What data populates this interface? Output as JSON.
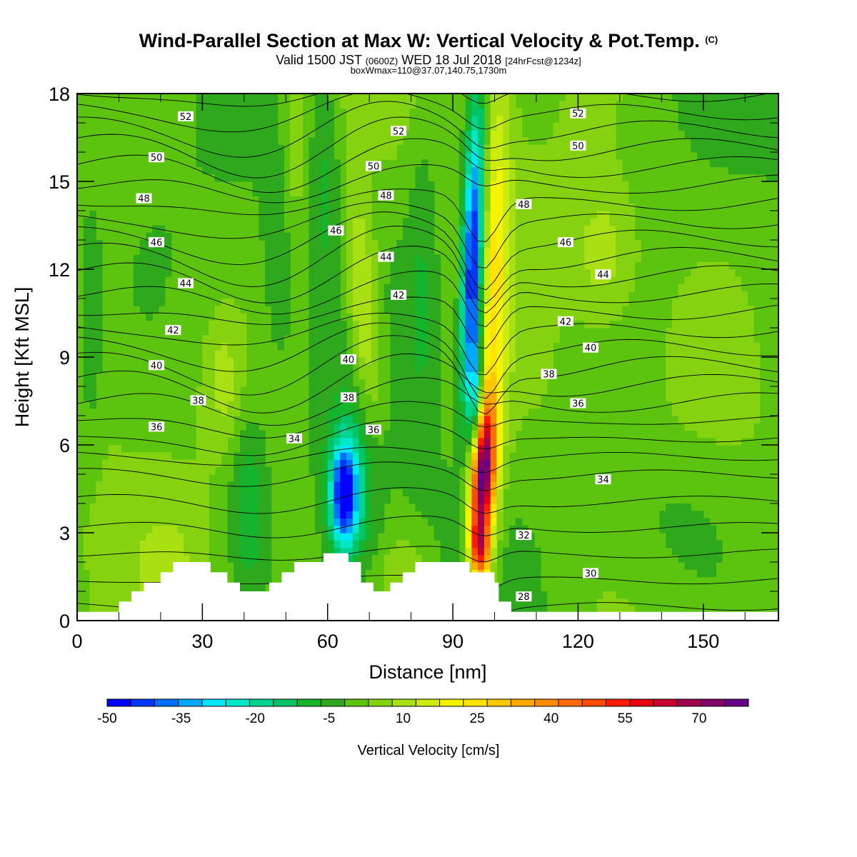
{
  "header": {
    "title": "Wind-Parallel Section at Max W: Vertical Velocity & Pot.Temp.",
    "copyright": "(C)",
    "valid_prefix": "Valid 1500 JST",
    "valid_utc": "(0600Z)",
    "valid_date": "WED 18 Jul 2018",
    "forecast": "[24hrFcst@1234z]",
    "box": "boxWmax=110@37.07,140.75,1730m"
  },
  "chart_data": {
    "type": "heatmap",
    "title": "Wind-Parallel Section at Max W: Vertical Velocity & Pot.Temp.",
    "xlabel": "Distance [nm]",
    "ylabel": "Height [Kft MSL]",
    "xlim": [
      0,
      168
    ],
    "ylim": [
      0,
      18
    ],
    "x_ticks": [
      "0",
      "30",
      "60",
      "90",
      "120",
      "150"
    ],
    "y_ticks": [
      "0",
      "3",
      "6",
      "9",
      "12",
      "15",
      "18"
    ],
    "grid": false,
    "colorbar": {
      "title": "Vertical Velocity [cm/s]",
      "placement": "bottom",
      "levels": [
        -50,
        -45,
        -40,
        -35,
        -30,
        -25,
        -20,
        -15,
        -10,
        -5,
        0,
        5,
        10,
        15,
        20,
        25,
        30,
        35,
        40,
        45,
        50,
        55,
        60,
        65,
        70,
        75,
        80
      ],
      "tick_labels": [
        "-50",
        "-35",
        "-20",
        "-5",
        "10",
        "25",
        "40",
        "55",
        "70"
      ],
      "colors": [
        "#0000ff",
        "#0037ff",
        "#006eff",
        "#00a8ff",
        "#00e6ff",
        "#00e8c8",
        "#00d490",
        "#00c466",
        "#16b42c",
        "#2ea81c",
        "#5cc40e",
        "#84d210",
        "#a8e014",
        "#ccec10",
        "#f4f400",
        "#ffe400",
        "#ffc800",
        "#ffa800",
        "#ff8c00",
        "#ff6c00",
        "#ff4a00",
        "#ff1a00",
        "#e60010",
        "#c80030",
        "#a0004c",
        "#840066",
        "#660088"
      ]
    },
    "w_features": [
      {
        "x": 97,
        "y": 5.2,
        "w": 80,
        "note": "main updraft core"
      },
      {
        "x": 97,
        "y": 2.4,
        "w": 55
      },
      {
        "x": 101,
        "y": 16.2,
        "w": 30
      },
      {
        "x": 67,
        "y": 10.5,
        "w": 22
      },
      {
        "x": 126,
        "y": 12.5,
        "w": 14
      },
      {
        "x": 95,
        "y": 13.2,
        "w": -50,
        "note": "main downdraft core"
      },
      {
        "x": 64,
        "y": 4.4,
        "w": -40
      },
      {
        "x": 64,
        "y": 13,
        "w": -5
      }
    ],
    "theta_contours": {
      "units": "C",
      "interval": 1,
      "labels": [
        {
          "x": 26,
          "y": 17.2,
          "text": "52"
        },
        {
          "x": 77,
          "y": 16.7,
          "text": "52"
        },
        {
          "x": 120,
          "y": 17.3,
          "text": "52"
        },
        {
          "x": 19,
          "y": 15.8,
          "text": "50"
        },
        {
          "x": 71,
          "y": 15.5,
          "text": "50"
        },
        {
          "x": 120,
          "y": 16.2,
          "text": "50"
        },
        {
          "x": 16,
          "y": 14.4,
          "text": "48"
        },
        {
          "x": 74,
          "y": 14.5,
          "text": "48"
        },
        {
          "x": 107,
          "y": 14.2,
          "text": "48"
        },
        {
          "x": 19,
          "y": 12.9,
          "text": "46"
        },
        {
          "x": 62,
          "y": 13.3,
          "text": "46"
        },
        {
          "x": 117,
          "y": 12.9,
          "text": "46"
        },
        {
          "x": 26,
          "y": 11.5,
          "text": "44"
        },
        {
          "x": 74,
          "y": 12.4,
          "text": "44"
        },
        {
          "x": 126,
          "y": 11.8,
          "text": "44"
        },
        {
          "x": 23,
          "y": 9.9,
          "text": "42"
        },
        {
          "x": 77,
          "y": 11.1,
          "text": "42"
        },
        {
          "x": 117,
          "y": 10.2,
          "text": "42"
        },
        {
          "x": 19,
          "y": 8.7,
          "text": "40"
        },
        {
          "x": 65,
          "y": 8.9,
          "text": "40"
        },
        {
          "x": 123,
          "y": 9.3,
          "text": "40"
        },
        {
          "x": 29,
          "y": 7.5,
          "text": "38"
        },
        {
          "x": 65,
          "y": 7.6,
          "text": "38"
        },
        {
          "x": 113,
          "y": 8.4,
          "text": "38"
        },
        {
          "x": 19,
          "y": 6.6,
          "text": "36"
        },
        {
          "x": 71,
          "y": 6.5,
          "text": "36"
        },
        {
          "x": 120,
          "y": 7.4,
          "text": "36"
        },
        {
          "x": 52,
          "y": 6.2,
          "text": "34"
        },
        {
          "x": 126,
          "y": 4.8,
          "text": "34"
        },
        {
          "x": 107,
          "y": 2.9,
          "text": "32"
        },
        {
          "x": 123,
          "y": 1.6,
          "text": "30"
        },
        {
          "x": 107,
          "y": 0.8,
          "text": "28"
        }
      ]
    },
    "terrain": [
      [
        0,
        0.3
      ],
      [
        10,
        0.3
      ],
      [
        10,
        0.65
      ],
      [
        13,
        0.65
      ],
      [
        13,
        1.0
      ],
      [
        16,
        1.0
      ],
      [
        16,
        1.3
      ],
      [
        20,
        1.3
      ],
      [
        20,
        1.65
      ],
      [
        23,
        1.65
      ],
      [
        23,
        2.0
      ],
      [
        32,
        2.0
      ],
      [
        32,
        1.65
      ],
      [
        36,
        1.65
      ],
      [
        36,
        1.3
      ],
      [
        39,
        1.3
      ],
      [
        39,
        1.0
      ],
      [
        46,
        1.0
      ],
      [
        46,
        1.3
      ],
      [
        49,
        1.3
      ],
      [
        49,
        1.65
      ],
      [
        52,
        1.65
      ],
      [
        52,
        2.0
      ],
      [
        59,
        2.0
      ],
      [
        59,
        2.3
      ],
      [
        65,
        2.3
      ],
      [
        65,
        2.0
      ],
      [
        68,
        2.0
      ],
      [
        68,
        1.3
      ],
      [
        71,
        1.3
      ],
      [
        71,
        1.0
      ],
      [
        75,
        1.0
      ],
      [
        75,
        1.3
      ],
      [
        78,
        1.3
      ],
      [
        78,
        1.65
      ],
      [
        81,
        1.65
      ],
      [
        81,
        2.0
      ],
      [
        94,
        2.0
      ],
      [
        94,
        1.65
      ],
      [
        100,
        1.65
      ],
      [
        100,
        1.3
      ],
      [
        101,
        1.3
      ],
      [
        101,
        0.65
      ],
      [
        104,
        0.65
      ],
      [
        104,
        0.3
      ],
      [
        168,
        0.3
      ]
    ]
  }
}
